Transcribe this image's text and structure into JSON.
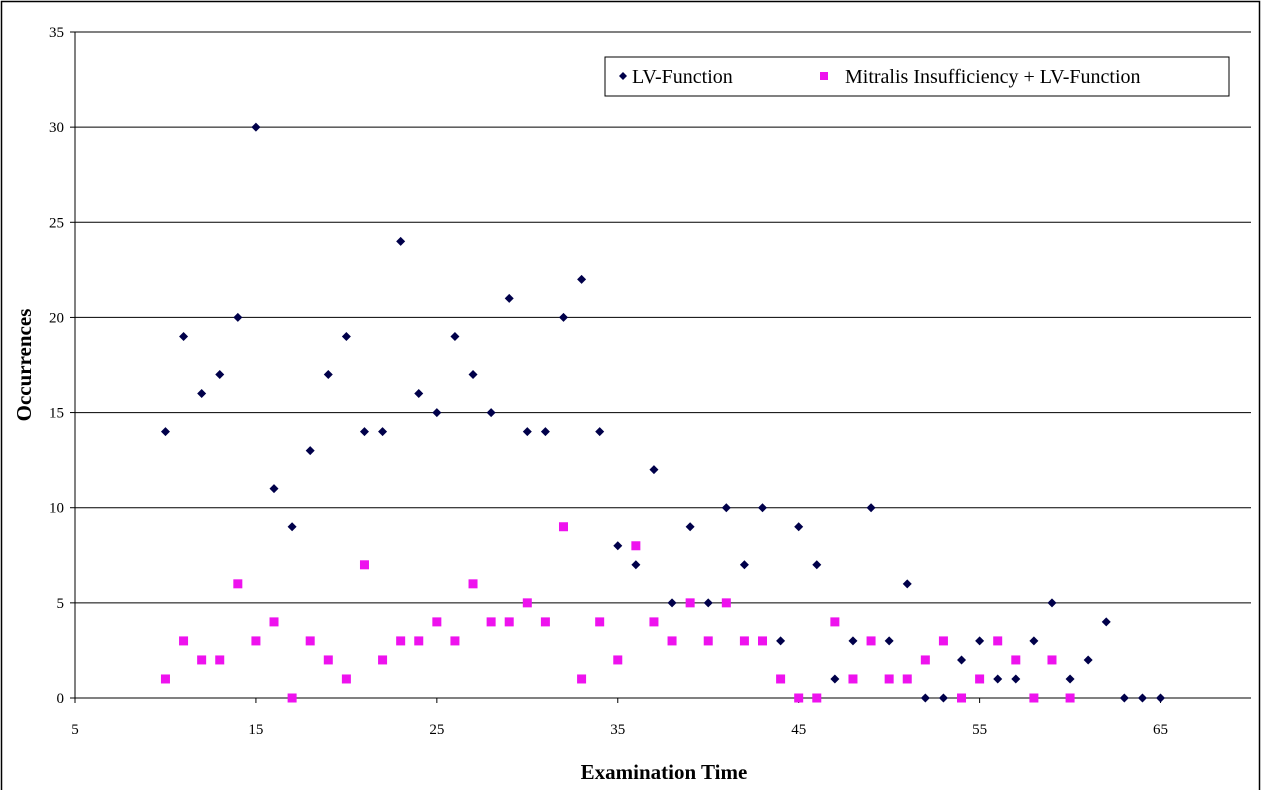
{
  "chart_data": {
    "type": "scatter",
    "title": "",
    "xlabel": "Examination Time",
    "ylabel": "Occurrences",
    "xlim": [
      5,
      70
    ],
    "ylim": [
      0,
      35
    ],
    "x_ticks": [
      5,
      15,
      25,
      35,
      45,
      55,
      65
    ],
    "y_ticks": [
      0,
      5,
      10,
      15,
      20,
      25,
      30,
      35
    ],
    "grid": "horizontal",
    "legend_position": "top-right",
    "series": [
      {
        "name": "LV-Function",
        "color": "#00004a",
        "marker": "diamond",
        "x": [
          10,
          11,
          12,
          13,
          14,
          15,
          16,
          17,
          18,
          19,
          20,
          21,
          22,
          23,
          24,
          25,
          26,
          27,
          28,
          29,
          30,
          31,
          32,
          33,
          34,
          35,
          36,
          37,
          38,
          39,
          40,
          41,
          42,
          43,
          44,
          45,
          46,
          47,
          48,
          49,
          50,
          51,
          52,
          53,
          54,
          55,
          56,
          57,
          58,
          59,
          60,
          61,
          62,
          63,
          64,
          65
        ],
        "y": [
          14,
          19,
          16,
          17,
          20,
          30,
          11,
          9,
          13,
          17,
          19,
          14,
          14,
          24,
          16,
          15,
          19,
          17,
          15,
          21,
          14,
          14,
          20,
          22,
          14,
          8,
          7,
          12,
          5,
          9,
          5,
          10,
          7,
          10,
          3,
          9,
          7,
          1,
          3,
          10,
          3,
          6,
          0,
          0,
          2,
          3,
          1,
          1,
          3,
          5,
          1,
          2,
          4,
          0,
          0,
          0
        ]
      },
      {
        "name": "Mitralis Insufficiency + LV-Function",
        "color": "#ee12ee",
        "marker": "square",
        "x": [
          10,
          11,
          12,
          13,
          14,
          15,
          16,
          17,
          18,
          19,
          20,
          21,
          22,
          23,
          24,
          25,
          26,
          27,
          28,
          29,
          30,
          31,
          32,
          33,
          34,
          35,
          36,
          37,
          38,
          39,
          40,
          41,
          42,
          43,
          44,
          45,
          46,
          47,
          48,
          49,
          50,
          51,
          52,
          53,
          54,
          55,
          56,
          57,
          58,
          59,
          60
        ],
        "y": [
          1,
          3,
          2,
          2,
          6,
          3,
          4,
          0,
          3,
          2,
          1,
          7,
          2,
          3,
          3,
          4,
          3,
          6,
          4,
          4,
          5,
          4,
          9,
          1,
          4,
          2,
          8,
          4,
          3,
          5,
          3,
          5,
          3,
          3,
          1,
          0,
          0,
          4,
          1,
          3,
          1,
          1,
          2,
          3,
          0,
          1,
          3,
          2,
          0,
          2,
          0
        ]
      }
    ]
  }
}
